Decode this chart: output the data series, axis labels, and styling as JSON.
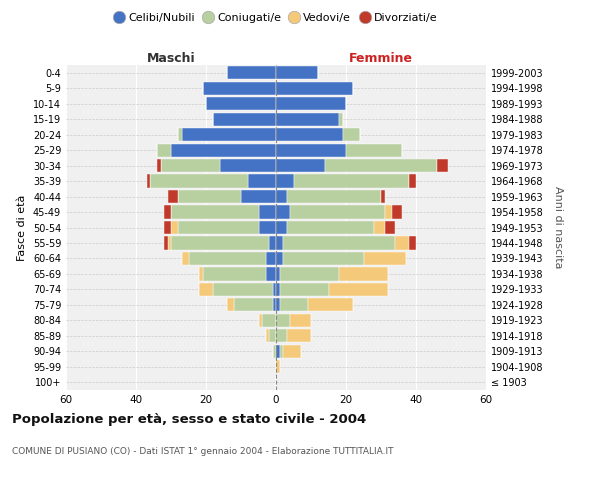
{
  "age_groups": [
    "100+",
    "95-99",
    "90-94",
    "85-89",
    "80-84",
    "75-79",
    "70-74",
    "65-69",
    "60-64",
    "55-59",
    "50-54",
    "45-49",
    "40-44",
    "35-39",
    "30-34",
    "25-29",
    "20-24",
    "15-19",
    "10-14",
    "5-9",
    "0-4"
  ],
  "birth_years": [
    "≤ 1903",
    "1904-1908",
    "1909-1913",
    "1914-1918",
    "1919-1923",
    "1924-1928",
    "1929-1933",
    "1934-1938",
    "1939-1943",
    "1944-1948",
    "1949-1953",
    "1954-1958",
    "1959-1963",
    "1964-1968",
    "1969-1973",
    "1974-1978",
    "1979-1983",
    "1984-1988",
    "1989-1993",
    "1994-1998",
    "1999-2003"
  ],
  "male_celibi": [
    0,
    0,
    0,
    0,
    0,
    1,
    1,
    3,
    3,
    2,
    5,
    5,
    10,
    8,
    16,
    30,
    27,
    18,
    20,
    21,
    14
  ],
  "male_coniugati": [
    0,
    0,
    1,
    2,
    4,
    11,
    17,
    18,
    22,
    28,
    23,
    25,
    18,
    28,
    17,
    4,
    1,
    0,
    0,
    0,
    0
  ],
  "male_vedovi": [
    0,
    0,
    0,
    1,
    1,
    2,
    4,
    1,
    2,
    1,
    2,
    0,
    0,
    0,
    0,
    0,
    0,
    0,
    0,
    0,
    0
  ],
  "male_divorziati": [
    0,
    0,
    0,
    0,
    0,
    0,
    0,
    0,
    0,
    1,
    2,
    2,
    3,
    1,
    1,
    0,
    0,
    0,
    0,
    0,
    0
  ],
  "female_nubili": [
    0,
    0,
    1,
    0,
    0,
    1,
    1,
    1,
    2,
    2,
    3,
    4,
    3,
    5,
    14,
    20,
    19,
    18,
    20,
    22,
    12
  ],
  "female_coniugate": [
    0,
    0,
    1,
    3,
    4,
    8,
    14,
    17,
    23,
    32,
    25,
    27,
    27,
    33,
    32,
    16,
    5,
    1,
    0,
    0,
    0
  ],
  "female_vedove": [
    0,
    1,
    5,
    7,
    6,
    13,
    17,
    14,
    12,
    4,
    3,
    2,
    0,
    0,
    0,
    0,
    0,
    0,
    0,
    0,
    0
  ],
  "female_divorziate": [
    0,
    0,
    0,
    0,
    0,
    0,
    0,
    0,
    0,
    2,
    3,
    3,
    1,
    2,
    3,
    0,
    0,
    0,
    0,
    0,
    0
  ],
  "color_celibi": "#4472c4",
  "color_coniugati": "#b8cfa0",
  "color_vedovi": "#f5c97a",
  "color_divorziati": "#c0392b",
  "xlim": 60,
  "title": "Popolazione per età, sesso e stato civile - 2004",
  "subtitle": "COMUNE DI PUSIANO (CO) - Dati ISTAT 1° gennaio 2004 - Elaborazione TUTTITALIA.IT",
  "label_maschi": "Maschi",
  "label_femmine": "Femmine",
  "ylabel_left": "Fasce di età",
  "ylabel_right": "Anni di nascita",
  "legend_labels": [
    "Celibi/Nubili",
    "Coniugati/e",
    "Vedovi/e",
    "Divorziati/e"
  ],
  "bg_color": "#ffffff",
  "plot_bg": "#f0f0f0"
}
